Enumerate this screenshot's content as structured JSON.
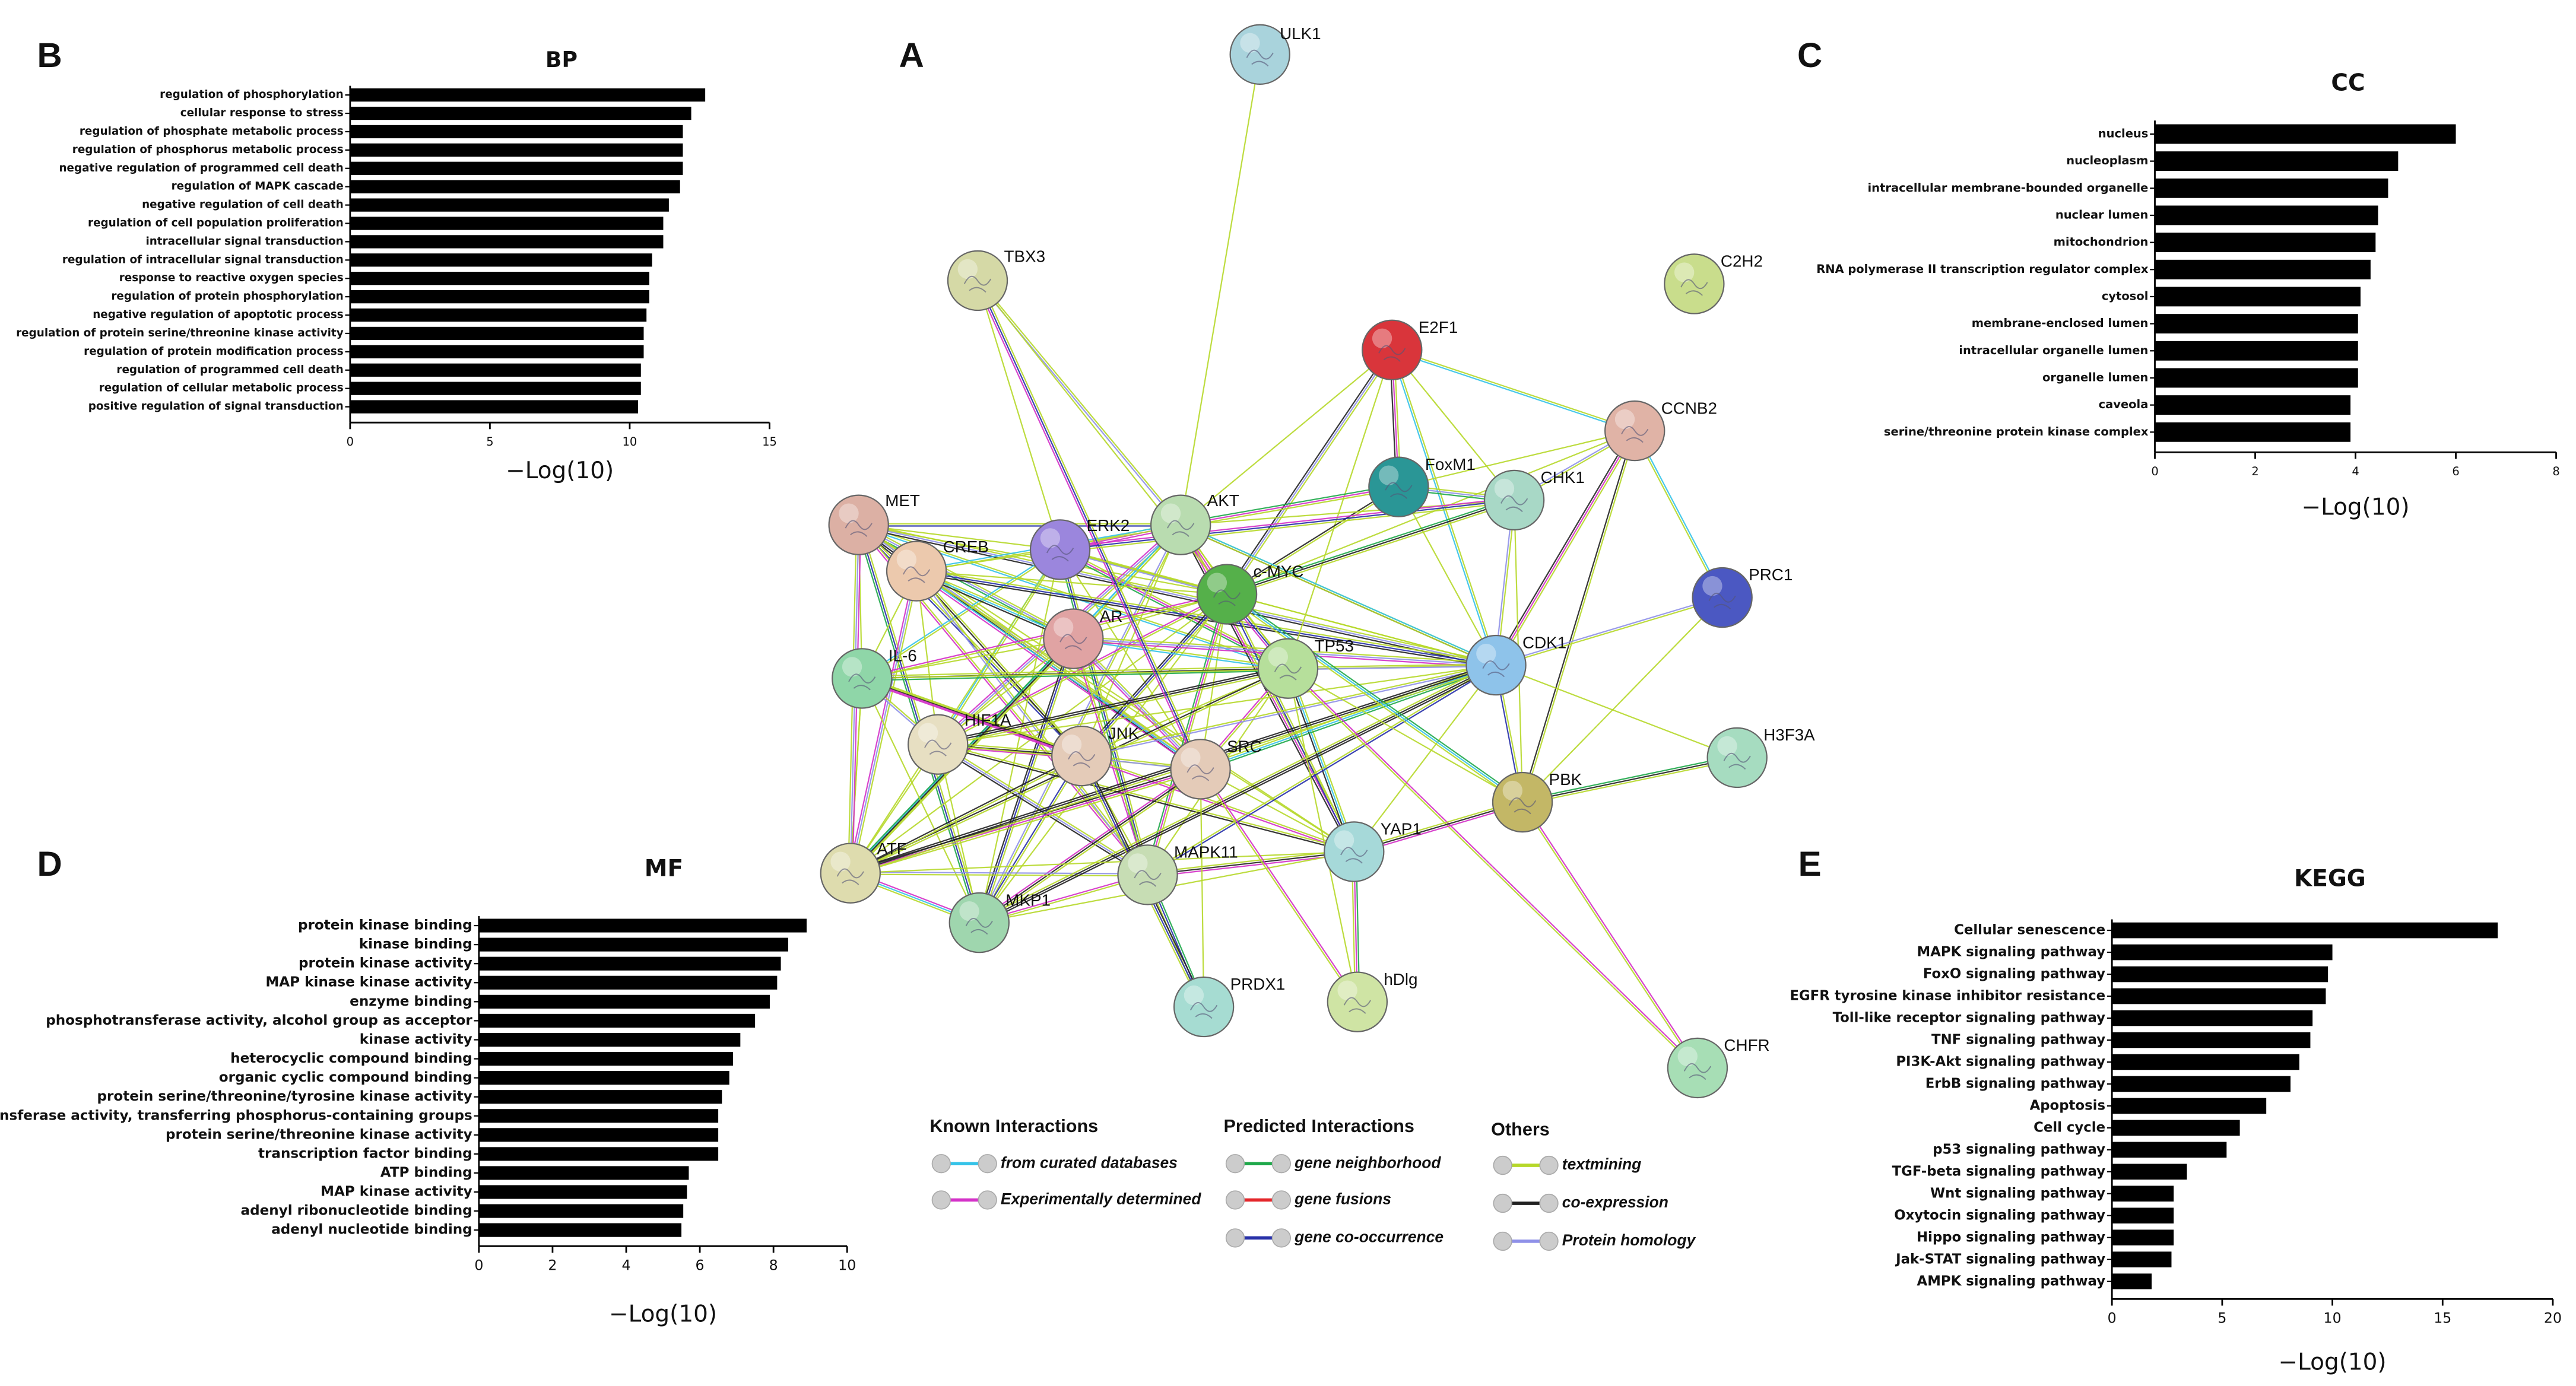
{
  "chart_data": [
    {
      "type": "network",
      "panel": "A",
      "nodes": [
        {
          "label": "ULK1",
          "color": "#a9d3dc"
        },
        {
          "label": "TBX3",
          "color": "#d5d9a6"
        },
        {
          "label": "C2H2",
          "color": "#c9dd8c"
        },
        {
          "label": "E2F1",
          "color": "#d9353b"
        },
        {
          "label": "CCNB2",
          "color": "#e0b3a6"
        },
        {
          "label": "FoxM1",
          "color": "#2a9696"
        },
        {
          "label": "CHK1",
          "color": "#a8d8c6"
        },
        {
          "label": "MET",
          "color": "#dcb0a4"
        },
        {
          "label": "ERK2",
          "color": "#9b86dd"
        },
        {
          "label": "AKT",
          "color": "#b9dcb0"
        },
        {
          "label": "CREB",
          "color": "#ecc9ad"
        },
        {
          "label": "c-MYC",
          "color": "#55b04a"
        },
        {
          "label": "PRC1",
          "color": "#4b58c2"
        },
        {
          "label": "AR",
          "color": "#e0a3a3"
        },
        {
          "label": "IL-6",
          "color": "#8fd6a8"
        },
        {
          "label": "TP53",
          "color": "#b6df9b"
        },
        {
          "label": "CDK1",
          "color": "#8ec3ea"
        },
        {
          "label": "HIF1A",
          "color": "#e7dfc2"
        },
        {
          "label": "JNK",
          "color": "#e4cbb8"
        },
        {
          "label": "SRC",
          "color": "#e4cbb8"
        },
        {
          "label": "H3F3A",
          "color": "#a6dcc0"
        },
        {
          "label": "PBK",
          "color": "#c3b766"
        },
        {
          "label": "ATF",
          "color": "#dedcae"
        },
        {
          "label": "YAP1",
          "color": "#a6d9d9"
        },
        {
          "label": "MAPK11",
          "color": "#c7ddb4"
        },
        {
          "label": "MKP1",
          "color": "#9fd6ae"
        },
        {
          "label": "PRDX1",
          "color": "#a6dcd2"
        },
        {
          "label": "hDlg",
          "color": "#cfe4a4"
        },
        {
          "label": "CHFR",
          "color": "#a7deb5"
        }
      ],
      "legend": [
        {
          "title": "Known Interactions",
          "items": [
            {
              "label": "from curated databases",
              "color": "#35c3e8"
            },
            {
              "label": "Experimentally determined",
              "color": "#d431c8"
            }
          ]
        },
        {
          "title": "Predicted Interactions",
          "items": [
            {
              "label": "gene neighborhood",
              "color": "#1fa84a"
            },
            {
              "label": "gene fusions",
              "color": "#e4262a"
            },
            {
              "label": "gene co-occurrence",
              "color": "#2730a8"
            }
          ]
        },
        {
          "title": "Others",
          "items": [
            {
              "label": "textmining",
              "color": "#b6d82a"
            },
            {
              "label": "co-expression",
              "color": "#222222"
            },
            {
              "label": "Protein homology",
              "color": "#8f91e8"
            }
          ]
        }
      ]
    },
    {
      "type": "barh",
      "panel": "B",
      "title": "BP",
      "xlabel": "−Log(10)",
      "color": "#000000",
      "categories": [
        "regulation of phosphorylation",
        "cellular response to stress",
        "regulation of phosphate metabolic process",
        "regulation of phosphorus metabolic process",
        "negative regulation of programmed cell death",
        "regulation of MAPK cascade",
        "negative regulation of cell death",
        "regulation of cell population proliferation",
        "intracellular signal transduction",
        "regulation of intracellular signal transduction",
        "response to reactive oxygen species",
        "regulation of protein phosphorylation",
        "negative regulation of apoptotic process",
        "regulation of protein serine/threonine kinase activity",
        "regulation of protein modification process",
        "regulation of programmed cell death",
        "regulation of cellular metabolic process",
        "positive regulation of signal transduction"
      ],
      "values": [
        12.7,
        12.2,
        11.9,
        11.9,
        11.9,
        11.8,
        11.4,
        11.2,
        11.2,
        10.8,
        10.7,
        10.7,
        10.6,
        10.5,
        10.5,
        10.4,
        10.4,
        10.3
      ],
      "xlim": [
        0,
        15
      ],
      "xticks": [
        0,
        5,
        10,
        15
      ]
    },
    {
      "type": "barh",
      "panel": "C",
      "title": "CC",
      "xlabel": "−Log(10)",
      "color": "#000000",
      "categories": [
        "nucleus",
        "nucleoplasm",
        "intracellular membrane-bounded organelle",
        "nuclear lumen",
        "mitochondrion",
        "RNA polymerase II transcription regulator complex",
        "cytosol",
        "membrane-enclosed lumen",
        "intracellular organelle lumen",
        "organelle lumen",
        "caveola",
        "serine/threonine protein kinase complex"
      ],
      "values": [
        6.0,
        4.85,
        4.65,
        4.45,
        4.4,
        4.3,
        4.1,
        4.05,
        4.05,
        4.05,
        3.9,
        3.9
      ],
      "xlim": [
        0,
        8
      ],
      "xticks": [
        0,
        2,
        4,
        6,
        8
      ]
    },
    {
      "type": "barh",
      "panel": "D",
      "title": "MF",
      "xlabel": "−Log(10)",
      "color": "#000000",
      "categories": [
        "protein kinase binding",
        "kinase binding",
        "protein kinase activity",
        "MAP kinase kinase activity",
        "enzyme binding",
        "phosphotransferase activity, alcohol group as acceptor",
        "kinase activity",
        "heterocyclic compound binding",
        "organic cyclic compound binding",
        "protein serine/threonine/tyrosine kinase activity",
        "transferase activity, transferring phosphorus-containing groups",
        "protein serine/threonine kinase activity",
        "transcription factor binding",
        "ATP binding",
        "MAP kinase activity",
        "adenyl ribonucleotide binding",
        "adenyl nucleotide binding"
      ],
      "values": [
        8.9,
        8.4,
        8.2,
        8.1,
        7.9,
        7.5,
        7.1,
        6.9,
        6.8,
        6.6,
        6.5,
        6.5,
        6.5,
        5.7,
        5.65,
        5.55,
        5.5
      ],
      "xlim": [
        0,
        10
      ],
      "xticks": [
        0,
        2,
        4,
        6,
        8,
        10
      ]
    },
    {
      "type": "barh",
      "panel": "E",
      "title": "KEGG",
      "xlabel": "−Log(10)",
      "color": "#000000",
      "categories": [
        "Cellular senescence",
        "MAPK signaling pathway",
        "FoxO signaling pathway",
        "EGFR tyrosine kinase inhibitor resistance",
        "Toll-like receptor signaling pathway",
        "TNF signaling pathway",
        "PI3K-Akt signaling pathway",
        "ErbB signaling pathway",
        "Apoptosis",
        "Cell cycle",
        "p53 signaling pathway",
        "TGF-beta signaling pathway",
        "Wnt signaling pathway",
        "Oxytocin signaling pathway",
        "Hippo signaling pathway",
        "Jak-STAT signaling pathway",
        "AMPK signaling pathway"
      ],
      "values": [
        17.5,
        10.0,
        9.8,
        9.7,
        9.1,
        9.0,
        8.5,
        8.1,
        7.0,
        5.8,
        5.2,
        3.4,
        2.8,
        2.8,
        2.8,
        2.7,
        1.8
      ],
      "xlim": [
        0,
        20
      ],
      "xticks": [
        0,
        5,
        10,
        15,
        20
      ]
    }
  ]
}
